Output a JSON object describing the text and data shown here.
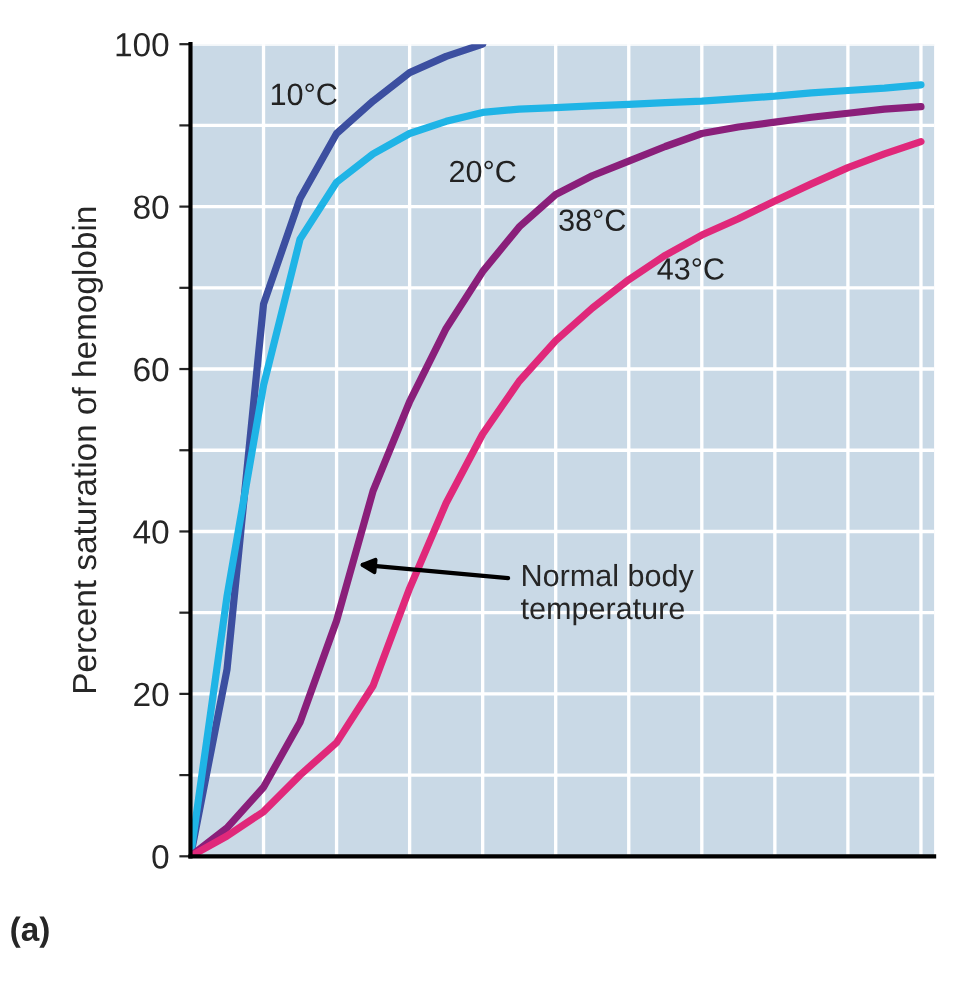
{
  "chart_data": {
    "type": "line",
    "ylabel": "Percent saturation of hemoglobin",
    "categories": [
      null,
      null,
      null,
      null,
      null,
      null,
      null,
      null,
      null,
      null,
      null,
      null,
      null,
      null,
      null,
      null,
      null,
      null,
      null,
      null,
      null
    ],
    "series": [
      {
        "name": "10°C",
        "color": "#3c4fa0",
        "values": [
          0,
          23,
          68,
          81,
          89,
          93,
          96.5,
          98.5,
          100,
          null,
          null,
          null,
          null,
          null,
          null,
          null,
          null,
          null,
          null,
          null,
          null
        ]
      },
      {
        "name": "20°C",
        "color": "#1fb4e6",
        "values": [
          0,
          32,
          58,
          76,
          83,
          86.5,
          89,
          90.5,
          91.6,
          92,
          92.2,
          92.4,
          92.6,
          92.8,
          93,
          93.3,
          93.6,
          94,
          94.3,
          94.6,
          95
        ]
      },
      {
        "name": "38°C",
        "color": "#8a1f7a",
        "values": [
          0,
          3.5,
          8.5,
          16.5,
          29,
          45,
          56,
          65,
          72,
          77.5,
          81.5,
          83.8,
          85.6,
          87.4,
          89,
          89.8,
          90.4,
          91,
          91.5,
          92,
          92.3
        ]
      },
      {
        "name": "43°C",
        "color": "#e0287a",
        "values": [
          0,
          2.5,
          5.5,
          10,
          14,
          21,
          33,
          43.5,
          52,
          58.5,
          63.5,
          67.5,
          71,
          74,
          76.5,
          78.5,
          80.7,
          82.8,
          84.8,
          86.5,
          88
        ]
      }
    ],
    "ylim": [
      0,
      100
    ],
    "yticks": [
      0,
      {
        "value": 10,
        "label": null
      },
      20,
      {
        "value": 30,
        "label": null
      },
      40,
      {
        "value": 50,
        "label": null
      },
      60,
      {
        "value": 70,
        "label": null
      },
      80,
      {
        "value": 90,
        "label": null
      },
      100
    ],
    "grid": true,
    "tick_labels": "y",
    "marker": "none",
    "line_style": "solid",
    "legend": false,
    "annotations": [
      "Normal body\ntemperature",
      "(a)"
    ]
  }
}
